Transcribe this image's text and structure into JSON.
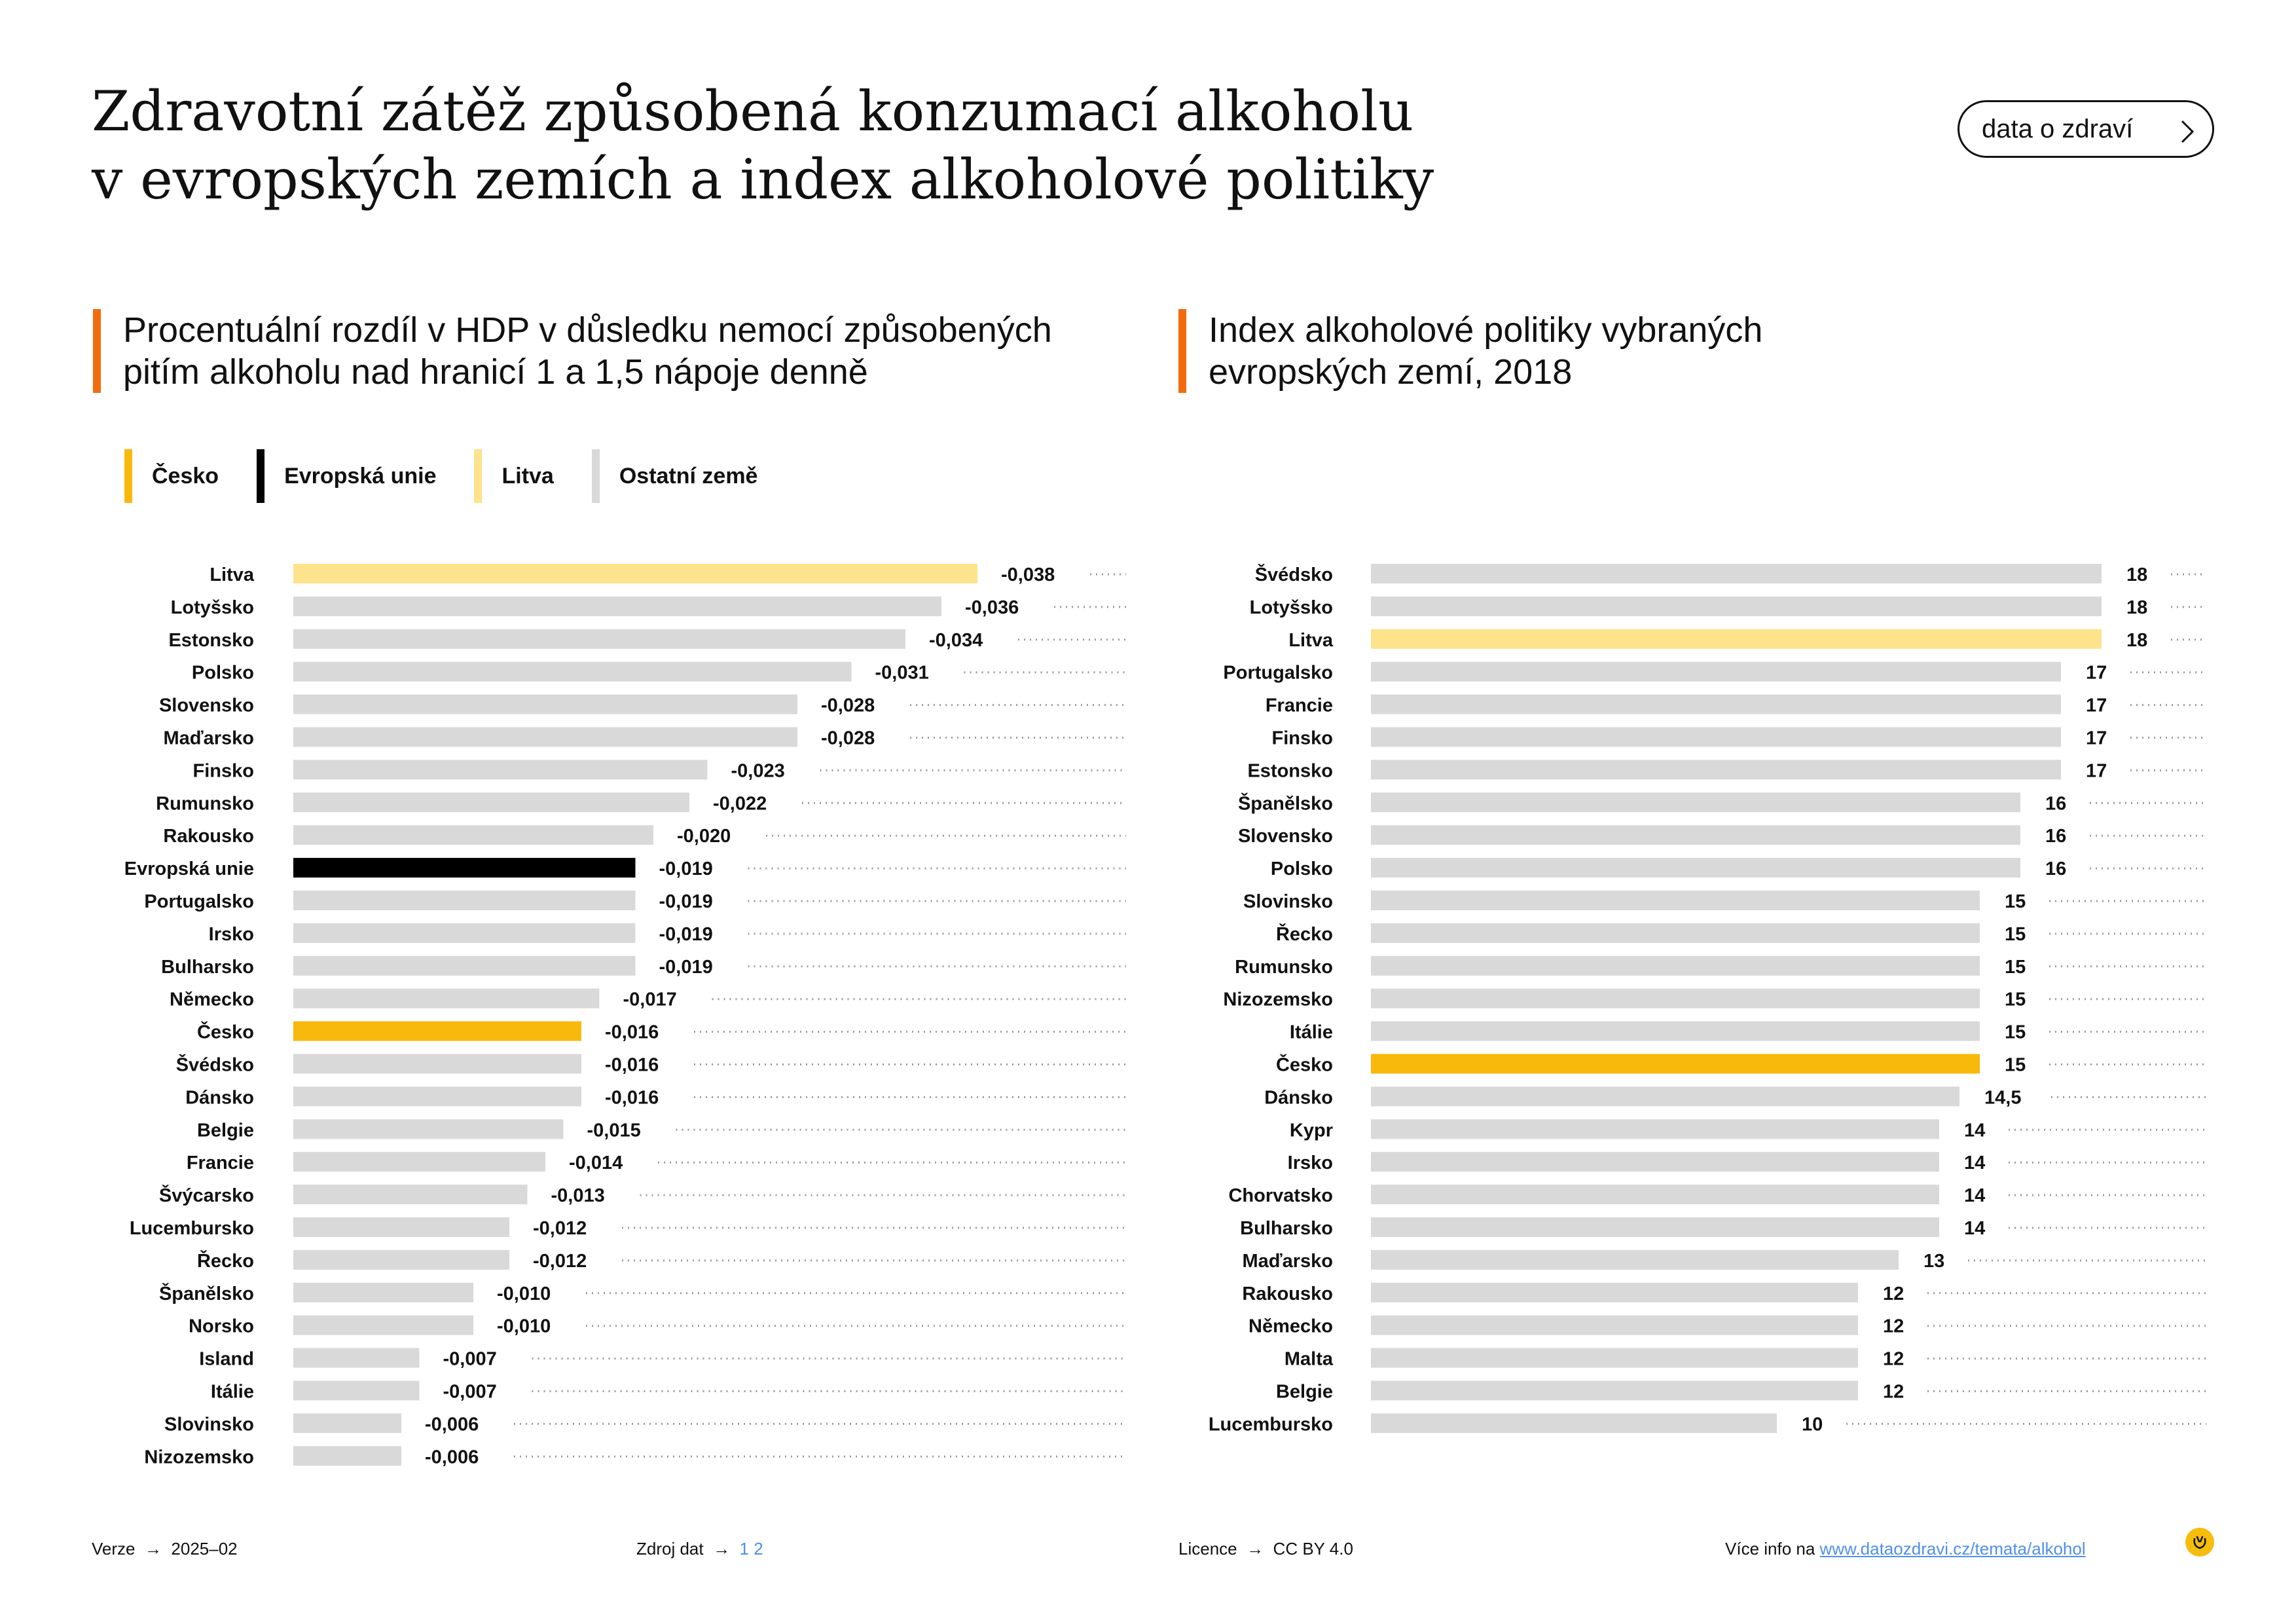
{
  "header": {
    "title_line1": "Zdravotní zátěž způsobená konzumací alkoholu",
    "title_line2": "v evropských zemích a index alkoholové politiky",
    "button_label": "data o zdraví"
  },
  "colors": {
    "cesko": "#f9b90c",
    "eu": "#000000",
    "litva": "#fde38b",
    "other": "#d9d9d9",
    "accent": "#f26c0d",
    "link": "#4f8ff0"
  },
  "legend": [
    {
      "label": "Česko",
      "color": "#f9b90c"
    },
    {
      "label": "Evropská unie",
      "color": "#000000"
    },
    {
      "label": "Litva",
      "color": "#fde38b"
    },
    {
      "label": "Ostatní země",
      "color": "#d9d9d9"
    }
  ],
  "chart_data": [
    {
      "type": "bar",
      "orientation": "horizontal",
      "title_line1": "Procentuální rozdíl v HDP v důsledku nemocí způsobených",
      "title_line2": "pitím alkoholu nad hranicí 1 a 1,5 nápoje denně",
      "xlim": [
        0,
        0.038
      ],
      "grid": false,
      "categories": [
        "Litva",
        "Lotyšsko",
        "Estonsko",
        "Polsko",
        "Slovensko",
        "Maďarsko",
        "Finsko",
        "Rumunsko",
        "Rakousko",
        "Evropská unie",
        "Portugalsko",
        "Irsko",
        "Bulharsko",
        "Německo",
        "Česko",
        "Švédsko",
        "Dánsko",
        "Belgie",
        "Francie",
        "Švýcarsko",
        "Lucembursko",
        "Řecko",
        "Španělsko",
        "Norsko",
        "Island",
        "Itálie",
        "Slovinsko",
        "Nizozemsko"
      ],
      "values": [
        -0.038,
        -0.036,
        -0.034,
        -0.031,
        -0.028,
        -0.028,
        -0.023,
        -0.022,
        -0.02,
        -0.019,
        -0.019,
        -0.019,
        -0.019,
        -0.017,
        -0.016,
        -0.016,
        -0.016,
        -0.015,
        -0.014,
        -0.013,
        -0.012,
        -0.012,
        -0.01,
        -0.01,
        -0.007,
        -0.007,
        -0.006,
        -0.006
      ],
      "value_labels": [
        "-0,038",
        "-0,036",
        "-0,034",
        "-0,031",
        "-0,028",
        "-0,028",
        "-0,023",
        "-0,022",
        "-0,020",
        "-0,019",
        "-0,019",
        "-0,019",
        "-0,019",
        "-0,017",
        "-0,016",
        "-0,016",
        "-0,016",
        "-0,015",
        "-0,014",
        "-0,013",
        "-0,012",
        "-0,012",
        "-0,010",
        "-0,010",
        "-0,007",
        "-0,007",
        "-0,006",
        "-0,006"
      ],
      "highlight": {
        "Litva": "#fde38b",
        "Evropská unie": "#000000",
        "Česko": "#f9b90c"
      }
    },
    {
      "type": "bar",
      "orientation": "horizontal",
      "title_line1": "Index alkoholové politiky vybraných",
      "title_line2": "evropských zemí, 2018",
      "xlim": [
        0,
        18
      ],
      "grid": false,
      "categories": [
        "Švédsko",
        "Lotyšsko",
        "Litva",
        "Portugalsko",
        "Francie",
        "Finsko",
        "Estonsko",
        "Španělsko",
        "Slovensko",
        "Polsko",
        "Slovinsko",
        "Řecko",
        "Rumunsko",
        "Nizozemsko",
        "Itálie",
        "Česko",
        "Dánsko",
        "Kypr",
        "Irsko",
        "Chorvatsko",
        "Bulharsko",
        "Maďarsko",
        "Rakousko",
        "Německo",
        "Malta",
        "Belgie",
        "Lucembursko"
      ],
      "values": [
        18,
        18,
        18,
        17,
        17,
        17,
        17,
        16,
        16,
        16,
        15,
        15,
        15,
        15,
        15,
        15,
        14.5,
        14,
        14,
        14,
        14,
        13,
        12,
        12,
        12,
        12,
        10
      ],
      "value_labels": [
        "18",
        "18",
        "18",
        "17",
        "17",
        "17",
        "17",
        "16",
        "16",
        "16",
        "15",
        "15",
        "15",
        "15",
        "15",
        "15",
        "14,5",
        "14",
        "14",
        "14",
        "14",
        "13",
        "12",
        "12",
        "12",
        "12",
        "10"
      ],
      "highlight": {
        "Litva": "#fde38b",
        "Česko": "#f9b90c"
      }
    }
  ],
  "footer": {
    "version_label": "Verze",
    "version_value": "2025–02",
    "source_label": "Zdroj dat",
    "source_1": "1",
    "source_2": "2",
    "license_label": "Licence",
    "license_value": "CC BY 4.0",
    "more_label": "Více info na",
    "more_link": "www.dataozdravi.cz/temata/alkohol"
  }
}
